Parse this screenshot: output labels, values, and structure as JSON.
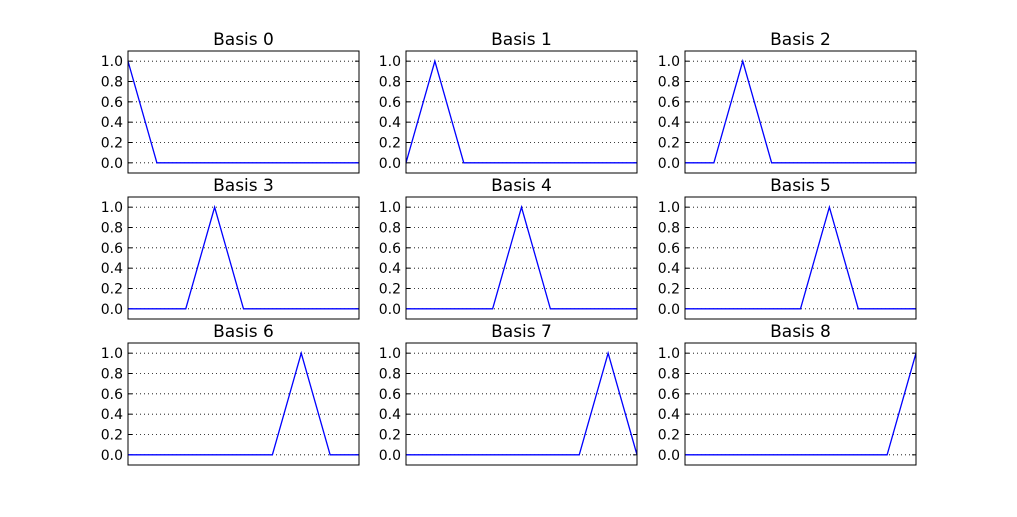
{
  "figure": {
    "line_color": "#0000ff",
    "grid": "dotted-horizontal",
    "layout": "3x3"
  },
  "chart_data": [
    {
      "type": "line",
      "title": "Basis 0",
      "ylim": [
        -0.1,
        1.1
      ],
      "yticks": [
        "1.0",
        "0.8",
        "0.6",
        "0.4",
        "0.2",
        "0.0"
      ],
      "x": [
        0,
        1,
        2,
        3,
        4,
        5,
        6,
        7,
        8
      ],
      "y": [
        1,
        0,
        0,
        0,
        0,
        0,
        0,
        0,
        0
      ]
    },
    {
      "type": "line",
      "title": "Basis 1",
      "ylim": [
        -0.1,
        1.1
      ],
      "yticks": [
        "1.0",
        "0.8",
        "0.6",
        "0.4",
        "0.2",
        "0.0"
      ],
      "x": [
        0,
        1,
        2,
        3,
        4,
        5,
        6,
        7,
        8
      ],
      "y": [
        0,
        1,
        0,
        0,
        0,
        0,
        0,
        0,
        0
      ]
    },
    {
      "type": "line",
      "title": "Basis 2",
      "ylim": [
        -0.1,
        1.1
      ],
      "yticks": [
        "1.0",
        "0.8",
        "0.6",
        "0.4",
        "0.2",
        "0.0"
      ],
      "x": [
        0,
        1,
        2,
        3,
        4,
        5,
        6,
        7,
        8
      ],
      "y": [
        0,
        0,
        1,
        0,
        0,
        0,
        0,
        0,
        0
      ]
    },
    {
      "type": "line",
      "title": "Basis 3",
      "ylim": [
        -0.1,
        1.1
      ],
      "yticks": [
        "1.0",
        "0.8",
        "0.6",
        "0.4",
        "0.2",
        "0.0"
      ],
      "x": [
        0,
        1,
        2,
        3,
        4,
        5,
        6,
        7,
        8
      ],
      "y": [
        0,
        0,
        0,
        1,
        0,
        0,
        0,
        0,
        0
      ]
    },
    {
      "type": "line",
      "title": "Basis 4",
      "ylim": [
        -0.1,
        1.1
      ],
      "yticks": [
        "1.0",
        "0.8",
        "0.6",
        "0.4",
        "0.2",
        "0.0"
      ],
      "x": [
        0,
        1,
        2,
        3,
        4,
        5,
        6,
        7,
        8
      ],
      "y": [
        0,
        0,
        0,
        0,
        1,
        0,
        0,
        0,
        0
      ]
    },
    {
      "type": "line",
      "title": "Basis 5",
      "ylim": [
        -0.1,
        1.1
      ],
      "yticks": [
        "1.0",
        "0.8",
        "0.6",
        "0.4",
        "0.2",
        "0.0"
      ],
      "x": [
        0,
        1,
        2,
        3,
        4,
        5,
        6,
        7,
        8
      ],
      "y": [
        0,
        0,
        0,
        0,
        0,
        1,
        0,
        0,
        0
      ]
    },
    {
      "type": "line",
      "title": "Basis 6",
      "ylim": [
        -0.1,
        1.1
      ],
      "yticks": [
        "1.0",
        "0.8",
        "0.6",
        "0.4",
        "0.2",
        "0.0"
      ],
      "x": [
        0,
        1,
        2,
        3,
        4,
        5,
        6,
        7,
        8
      ],
      "y": [
        0,
        0,
        0,
        0,
        0,
        0,
        1,
        0,
        0
      ]
    },
    {
      "type": "line",
      "title": "Basis 7",
      "ylim": [
        -0.1,
        1.1
      ],
      "yticks": [
        "1.0",
        "0.8",
        "0.6",
        "0.4",
        "0.2",
        "0.0"
      ],
      "x": [
        0,
        1,
        2,
        3,
        4,
        5,
        6,
        7,
        8
      ],
      "y": [
        0,
        0,
        0,
        0,
        0,
        0,
        0,
        1,
        0
      ]
    },
    {
      "type": "line",
      "title": "Basis 8",
      "ylim": [
        -0.1,
        1.1
      ],
      "yticks": [
        "1.0",
        "0.8",
        "0.6",
        "0.4",
        "0.2",
        "0.0"
      ],
      "x": [
        0,
        1,
        2,
        3,
        4,
        5,
        6,
        7,
        8
      ],
      "y": [
        0,
        0,
        0,
        0,
        0,
        0,
        0,
        0,
        1
      ]
    }
  ]
}
